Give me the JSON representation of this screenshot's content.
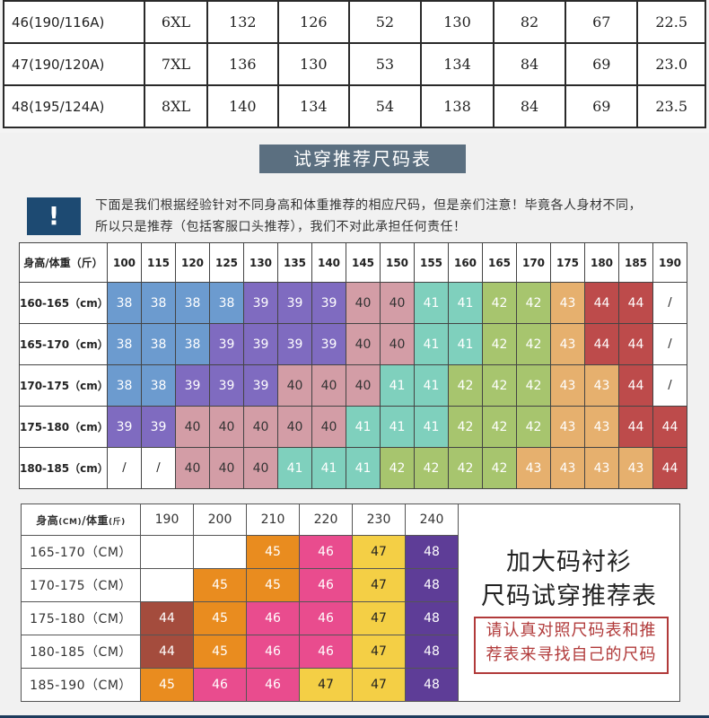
{
  "top_table": {
    "rows": [
      [
        "46(190/116A)",
        "6XL",
        "132",
        "126",
        "52",
        "130",
        "82",
        "67",
        "22.5"
      ],
      [
        "47(190/120A)",
        "7XL",
        "136",
        "130",
        "53",
        "134",
        "84",
        "69",
        "23.0"
      ],
      [
        "48(195/124A)",
        "8XL",
        "140",
        "134",
        "54",
        "138",
        "84",
        "69",
        "23.5"
      ]
    ]
  },
  "section2": {
    "title": "试穿推荐尺码表",
    "warning_icon": "!",
    "notice_lines": [
      "下面是我们根据经验针对不同身高和体重推荐的相应尺码，但是亲们注意！毕竟各人身材不同，",
      "所以只是推荐（包括客服口头推荐），我们不对此承担任何责任！"
    ]
  },
  "grid1": {
    "corner": "身高/体重（斤）",
    "weights": [
      "100",
      "115",
      "120",
      "125",
      "130",
      "135",
      "140",
      "145",
      "150",
      "155",
      "160",
      "165",
      "170",
      "175",
      "180",
      "185",
      "190"
    ],
    "rows": [
      {
        "label": "160-165（cm）",
        "cells": [
          "38",
          "38",
          "38",
          "38",
          "39",
          "39",
          "39",
          "40",
          "40",
          "41",
          "41",
          "42",
          "42",
          "43",
          "44",
          "44",
          "/"
        ]
      },
      {
        "label": "165-170（cm）",
        "cells": [
          "38",
          "38",
          "38",
          "39",
          "39",
          "39",
          "39",
          "40",
          "40",
          "41",
          "41",
          "42",
          "42",
          "43",
          "44",
          "44",
          "/"
        ]
      },
      {
        "label": "170-175（cm）",
        "cells": [
          "38",
          "38",
          "39",
          "39",
          "39",
          "40",
          "40",
          "40",
          "41",
          "41",
          "42",
          "42",
          "42",
          "43",
          "43",
          "44",
          "/"
        ]
      },
      {
        "label": "175-180（cm）",
        "cells": [
          "39",
          "39",
          "40",
          "40",
          "40",
          "40",
          "40",
          "41",
          "41",
          "41",
          "42",
          "42",
          "42",
          "43",
          "43",
          "44",
          "44"
        ]
      },
      {
        "label": "180-185（cm）",
        "cells": [
          "/",
          "/",
          "40",
          "40",
          "40",
          "41",
          "41",
          "41",
          "42",
          "42",
          "42",
          "42",
          "43",
          "43",
          "43",
          "43",
          "44"
        ]
      }
    ]
  },
  "grid2": {
    "corner_main": "身高",
    "corner_unit1": "(CM)",
    "corner_sep": "/体重",
    "corner_unit2": "(斤)",
    "weights": [
      "190",
      "200",
      "210",
      "220",
      "230",
      "240"
    ],
    "rows": [
      {
        "label": "165-170（CM）",
        "cells": [
          "",
          "",
          "45",
          "46",
          "47",
          "48"
        ]
      },
      {
        "label": "170-175（CM）",
        "cells": [
          "",
          "45",
          "45",
          "46",
          "47",
          "48"
        ]
      },
      {
        "label": "175-180（CM）",
        "cells": [
          "44",
          "45",
          "46",
          "46",
          "47",
          "48"
        ]
      },
      {
        "label": "180-185（CM）",
        "cells": [
          "44",
          "45",
          "46",
          "46",
          "47",
          "48"
        ]
      },
      {
        "label": "185-190（CM）",
        "cells": [
          "45",
          "46",
          "46",
          "47",
          "47",
          "48"
        ]
      }
    ],
    "promo_title_1": "加大码衬衫",
    "promo_title_2": "尺码试穿推荐表",
    "promo_note_1": "请认真对照尺码表和推",
    "promo_note_2": "荐表来寻找自己的尺码"
  },
  "colors": {
    "title_bg": "#5b6f80",
    "warning_bg": "#1d4a72",
    "size_38": "#6c9bcf",
    "size_39": "#7f6bc0",
    "size_40": "#d39da6",
    "size_41": "#7fd0bd",
    "size_42": "#a7c56e",
    "size_43": "#e6b06e",
    "size_44": "#bd4b4b",
    "size_44_big": "#a44c3d",
    "size_45": "#e98c1f",
    "size_46": "#e94c8e",
    "size_47": "#f4cf45",
    "size_48": "#5e3d97"
  }
}
